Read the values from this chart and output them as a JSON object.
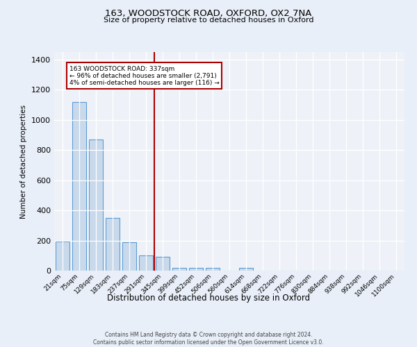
{
  "title": "163, WOODSTOCK ROAD, OXFORD, OX2 7NA",
  "subtitle": "Size of property relative to detached houses in Oxford",
  "xlabel": "Distribution of detached houses by size in Oxford",
  "ylabel": "Number of detached properties",
  "footnote1": "Contains HM Land Registry data © Crown copyright and database right 2024.",
  "footnote2": "Contains public sector information licensed under the Open Government Licence v3.0.",
  "bar_labels": [
    "21sqm",
    "75sqm",
    "129sqm",
    "183sqm",
    "237sqm",
    "291sqm",
    "345sqm",
    "399sqm",
    "452sqm",
    "506sqm",
    "560sqm",
    "614sqm",
    "668sqm",
    "722sqm",
    "776sqm",
    "830sqm",
    "884sqm",
    "938sqm",
    "992sqm",
    "1046sqm",
    "1100sqm"
  ],
  "bar_values": [
    193,
    1120,
    870,
    350,
    190,
    100,
    90,
    20,
    18,
    18,
    0,
    20,
    0,
    0,
    0,
    0,
    0,
    0,
    0,
    0,
    0
  ],
  "bar_color": "#c8d9eb",
  "bar_edge_color": "#5b9bd5",
  "vline_color": "#aa0000",
  "annotation_line1": "163 WOODSTOCK ROAD: 337sqm",
  "annotation_line2": "← 96% of detached houses are smaller (2,791)",
  "annotation_line3": "4% of semi-detached houses are larger (116) →",
  "annotation_box_color": "#ffffff",
  "annotation_box_edge": "#aa0000",
  "ylim": [
    0,
    1450
  ],
  "yticks": [
    0,
    200,
    400,
    600,
    800,
    1000,
    1200,
    1400
  ],
  "bg_color": "#e8eff8",
  "plot_bg": "#eef2f8",
  "vline_idx": 6
}
